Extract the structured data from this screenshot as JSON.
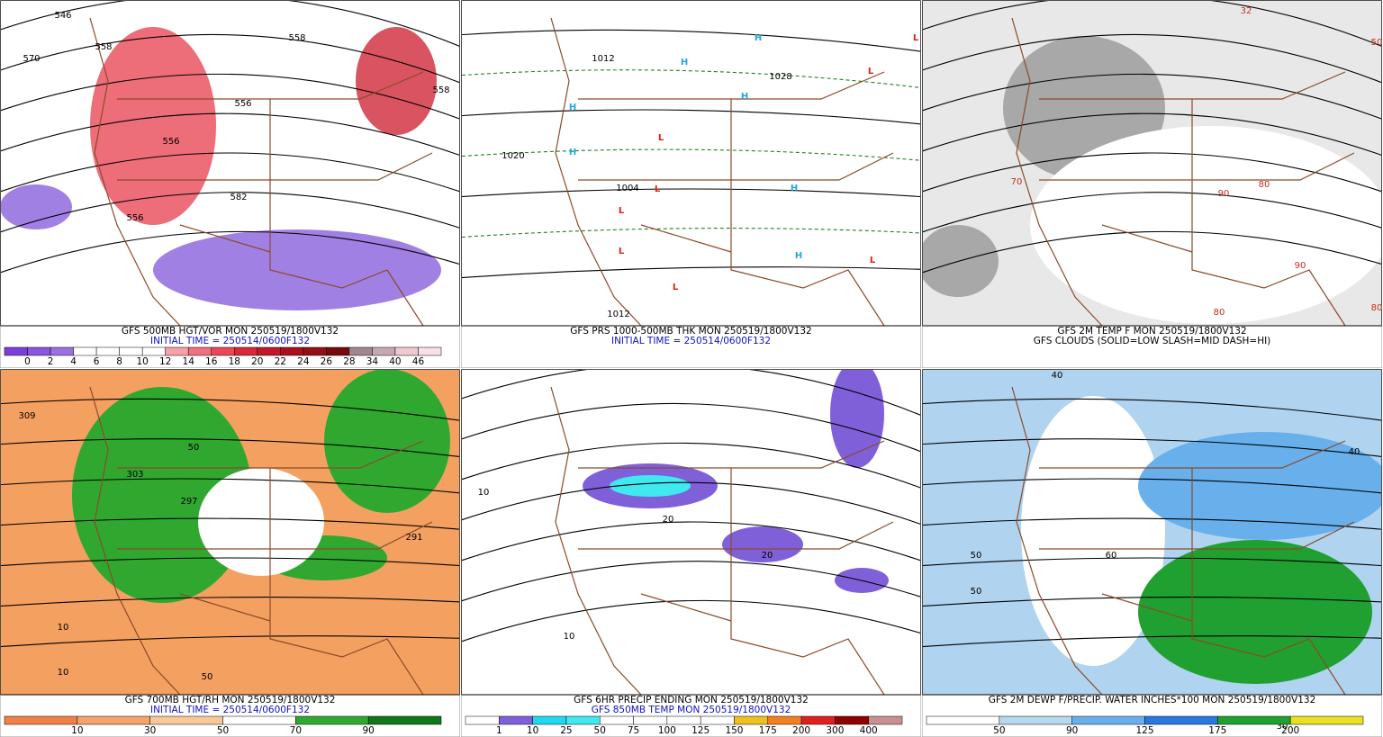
{
  "panels": [
    {
      "caption": [
        "GFS 500MB HGT/VOR MON 250519/1800V132",
        "INITIAL TIME = 250514/0600F132"
      ],
      "colorbar": {
        "labels": [
          "0",
          "2",
          "4",
          "6",
          "8",
          "10",
          "12",
          "14",
          "16",
          "18",
          "20",
          "22",
          "24",
          "26",
          "28",
          "34",
          "40",
          "46"
        ],
        "colors": [
          "#7a3fd8",
          "#8a55e0",
          "#9a70e4",
          "#ffffff",
          "#ffffff",
          "#ffffff",
          "#ffffff",
          "#f7a0a8",
          "#ef7080",
          "#e84858",
          "#d82838",
          "#c01828",
          "#a81020",
          "#901018",
          "#780810",
          "#a08890",
          "#c8a8b0",
          "#f0c8d0",
          "#f8e0e8"
        ]
      },
      "map_labels": [
        "546",
        "558",
        "570",
        "558",
        "558",
        "556",
        "556",
        "582",
        "556"
      ]
    },
    {
      "caption": [
        "GFS PRS 1000-500MB THK MON 250519/1800V132",
        "INITIAL TIME = 250514/0600F132"
      ],
      "map_labels": [
        "H",
        "H",
        "H",
        "H",
        "H",
        "H",
        "H",
        "L",
        "L",
        "L",
        "L",
        "L",
        "L",
        "L",
        "L",
        "1028",
        "1020",
        "1012",
        "1004",
        "1012"
      ]
    },
    {
      "caption": [
        "GFS 2M TEMP F MON 250519/1800V132",
        "GFS CLOUDS (SOLID=LOW SLASH=MID DASH=HI)"
      ],
      "map_labels": [
        "50",
        "70",
        "80",
        "90",
        "90",
        "80",
        "80",
        "32"
      ]
    },
    {
      "caption": [
        "GFS 700MB HGT/RH MON 250519/1800V132",
        "INITIAL TIME = 250514/0600F132"
      ],
      "colorbar": {
        "labels": [
          "10",
          "30",
          "50",
          "70",
          "90"
        ],
        "colors": [
          "#f08048",
          "#f4a468",
          "#f8c898",
          "#ffffff",
          "#30a830",
          "#107818"
        ]
      },
      "map_labels": [
        "309",
        "303",
        "297",
        "291",
        "50",
        "10",
        "10",
        "50"
      ]
    },
    {
      "caption": [
        "GFS 6HR PRECIP ENDING MON 250519/1800V132",
        "GFS 850MB TEMP MON 250519/1800V132"
      ],
      "colorbar": {
        "labels": [
          "1",
          "10",
          "25",
          "50",
          "75",
          "100",
          "125",
          "150",
          "175",
          "200",
          "300",
          "400"
        ],
        "colors": [
          "#ffffff",
          "#8060d8",
          "#20d8f0",
          "#40e8f0",
          "#ffffff",
          "#ffffff",
          "#ffffff",
          "#ffffff",
          "#f0c020",
          "#f08020",
          "#e02020",
          "#900000",
          "#c89090"
        ]
      },
      "map_labels": [
        "10",
        "20",
        "20",
        "10"
      ]
    },
    {
      "caption": [
        "GFS 2M DEWP F/PRECIP. WATER INCHES*100 MON 250519/1800V132"
      ],
      "colorbar": {
        "labels": [
          "50",
          "90",
          "125",
          "175",
          "200"
        ],
        "colors": [
          "#ffffff",
          "#b8d8f0",
          "#68b0ec",
          "#2878e0",
          "#20a030",
          "#e8e020"
        ]
      },
      "map_labels": [
        "30",
        "40",
        "50",
        "50",
        "60",
        "40"
      ]
    }
  ]
}
